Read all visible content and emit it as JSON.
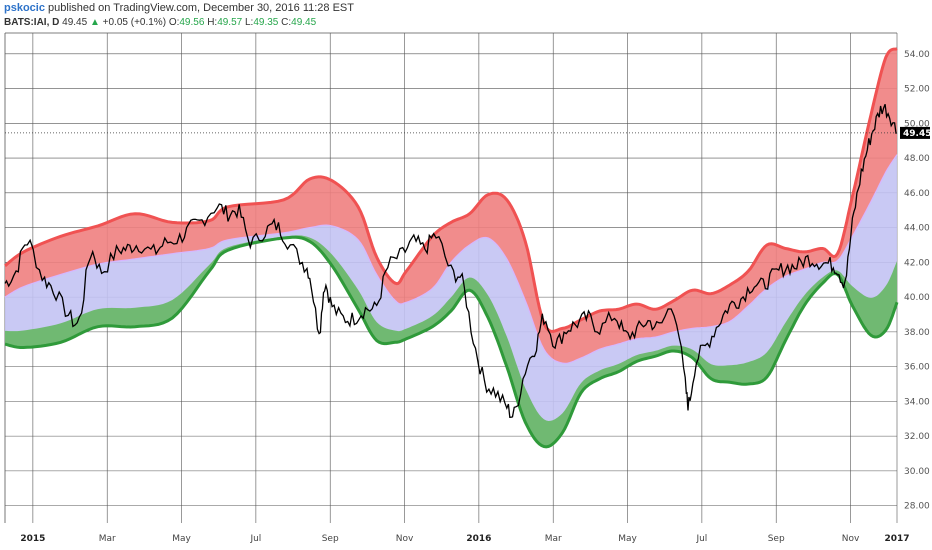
{
  "header": {
    "author": "pskocic",
    "published": " published on TradingView.com, December 30, 2016 11:28 EST",
    "symbol": "BATS:IAI, D",
    "last": "49.45",
    "arrow": "▲",
    "change": "+0.05 (+0.1%)",
    "o_label": "O:",
    "o_value": "49.56",
    "h_label": "H:",
    "h_value": "49.57",
    "l_label": "L:",
    "l_value": "49.35",
    "c_label": "C:",
    "c_value": "49.45"
  },
  "colors": {
    "upper": "#f05252",
    "upper_fill": "#f08080",
    "middle_fill": "#c3c3f3",
    "middle_line": "#d6b6ff",
    "lower": "#2f9a3a",
    "lower_fill": "#6cb86a",
    "price": "#000000",
    "grid": "#555555",
    "label_bg": "#000000"
  },
  "chart_data": {
    "type": "line",
    "title": "",
    "ylim": [
      27,
      55.2
    ],
    "yticks": [
      "28.00",
      "30.00",
      "32.00",
      "34.00",
      "36.00",
      "38.00",
      "40.00",
      "42.00",
      "44.00",
      "46.00",
      "48.00",
      "50.00",
      "52.00",
      "54.00"
    ],
    "yvalues": [
      28,
      30,
      32,
      34,
      36,
      38,
      40,
      42,
      44,
      46,
      48,
      50,
      52,
      54
    ],
    "xlim": [
      0,
      24
    ],
    "xticks": [
      {
        "t": 0.75,
        "label": "2015",
        "bold": true
      },
      {
        "t": 2.75,
        "label": "Mar",
        "bold": false
      },
      {
        "t": 4.75,
        "label": "May",
        "bold": false
      },
      {
        "t": 6.75,
        "label": "Jul",
        "bold": false
      },
      {
        "t": 8.75,
        "label": "Sep",
        "bold": false
      },
      {
        "t": 10.75,
        "label": "Nov",
        "bold": false
      },
      {
        "t": 12.75,
        "label": "2016",
        "bold": true
      },
      {
        "t": 14.75,
        "label": "Mar",
        "bold": false
      },
      {
        "t": 16.75,
        "label": "May",
        "bold": false
      },
      {
        "t": 18.75,
        "label": "Jul",
        "bold": false
      },
      {
        "t": 20.75,
        "label": "Sep",
        "bold": false
      },
      {
        "t": 22.75,
        "label": "Nov",
        "bold": false
      },
      {
        "t": 24.0,
        "label": "2017",
        "bold": true
      }
    ],
    "last_price": "49.45",
    "series": [
      {
        "key": "upper",
        "x": [
          0,
          0.5,
          1.5,
          2.5,
          3.5,
          4.5,
          5.5,
          6,
          7.5,
          8.2,
          8.8,
          9.5,
          10,
          10.5,
          10.8,
          11.5,
          12,
          12.5,
          13,
          13.5,
          14,
          14.5,
          15,
          15.5,
          16,
          16.5,
          17,
          17.5,
          18,
          18.5,
          19,
          19.5,
          20,
          20.5,
          21,
          21.5,
          22,
          22.4,
          22.8,
          23.3,
          23.7,
          24
        ],
        "y": [
          41.8,
          42.6,
          43.5,
          44.1,
          44.8,
          44.3,
          44.4,
          45.2,
          45.6,
          46.8,
          46.7,
          45.2,
          42.3,
          40.8,
          41.5,
          43.5,
          44.3,
          44.8,
          45.9,
          45.6,
          43.2,
          38.5,
          38.2,
          38.7,
          39.2,
          39.3,
          39.6,
          39.3,
          39.8,
          40.4,
          40.2,
          40.7,
          41.5,
          43,
          42.8,
          42.6,
          42.8,
          42.5,
          45.8,
          50.5,
          53.8,
          54.3
        ]
      },
      {
        "key": "middle",
        "x": [
          0,
          0.5,
          1.5,
          2.5,
          3.5,
          4.5,
          5.5,
          6,
          7.5,
          8.2,
          8.8,
          9.5,
          10,
          10.5,
          10.8,
          11.5,
          12,
          12.5,
          13,
          13.5,
          14,
          14.5,
          15,
          15.5,
          16,
          16.5,
          17,
          17.5,
          18,
          18.5,
          19,
          19.5,
          20,
          20.5,
          21,
          21.5,
          22,
          22.4,
          22.8,
          23.3,
          23.7,
          24
        ],
        "y": [
          40,
          40.6,
          41.3,
          41.9,
          42.2,
          42.5,
          42.8,
          43.3,
          43.7,
          44,
          44.1,
          43.3,
          41.3,
          39.8,
          39.7,
          40.5,
          42,
          43,
          43.4,
          42.2,
          39.8,
          37,
          36.2,
          36.5,
          37,
          37.3,
          37.6,
          37.7,
          38,
          38.2,
          38.3,
          38.6,
          39.5,
          40.5,
          41.2,
          41.6,
          42,
          42.1,
          43.5,
          45.5,
          47.2,
          48.2
        ]
      },
      {
        "key": "lower",
        "x": [
          0,
          0.5,
          1.5,
          2.5,
          3.5,
          4.5,
          5.5,
          6,
          7.5,
          8.2,
          8.8,
          9.5,
          10,
          10.5,
          10.8,
          11.5,
          12,
          12.5,
          13,
          13.5,
          14,
          14.5,
          15,
          15.5,
          16,
          16.5,
          17,
          17.5,
          18,
          18.5,
          19,
          19.5,
          20,
          20.5,
          21,
          21.5,
          22,
          22.4,
          22.8,
          23.3,
          23.7,
          24
        ],
        "y": [
          37.3,
          37.1,
          37.4,
          38.3,
          38.3,
          38.8,
          41.5,
          42.7,
          43.4,
          43.2,
          41.8,
          39.3,
          37.5,
          37.4,
          37.6,
          38.3,
          39.2,
          40.4,
          38.8,
          36,
          32.8,
          31.4,
          32.2,
          34.5,
          35.3,
          35.7,
          36.3,
          36.6,
          36.9,
          36.5,
          35.3,
          35.1,
          35,
          35.4,
          37.5,
          39.5,
          40.8,
          41.3,
          39.5,
          37.8,
          38.1,
          39.7
        ]
      },
      {
        "key": "price",
        "x": [
          0,
          0.3,
          0.6,
          1,
          1.3,
          1.7,
          2,
          2.3,
          2.6,
          3,
          3.3,
          3.6,
          4,
          4.3,
          4.7,
          5,
          5.3,
          5.7,
          6,
          6.3,
          6.6,
          7,
          7.3,
          7.6,
          8,
          8.2,
          8.45,
          8.6,
          8.8,
          9.1,
          9.4,
          9.7,
          10,
          10.3,
          10.7,
          11,
          11.3,
          11.6,
          12,
          12.3,
          12.6,
          12.9,
          13.2,
          13.5,
          13.7,
          14,
          14.3,
          14.5,
          14.8,
          15.1,
          15.4,
          15.7,
          16,
          16.4,
          16.7,
          17,
          17.3,
          17.6,
          18,
          18.3,
          18.4,
          18.6,
          18.9,
          19.2,
          19.5,
          19.8,
          20.1,
          20.4,
          20.7,
          21,
          21.3,
          21.6,
          21.9,
          22.2,
          22.4,
          22.6,
          22.8,
          23,
          23.2,
          23.4,
          23.6,
          23.8,
          24
        ],
        "y": [
          40.8,
          41.5,
          43.2,
          41.2,
          40.5,
          39,
          38.7,
          42.5,
          41.5,
          42.6,
          42.8,
          43,
          42.6,
          43.1,
          43.4,
          44,
          44.4,
          45.2,
          44.8,
          44.9,
          43.2,
          43.8,
          44.1,
          43.2,
          42,
          41.2,
          38.2,
          40.7,
          39.5,
          38.8,
          38.8,
          39.3,
          39.5,
          41.7,
          42.5,
          43.2,
          42.8,
          43.5,
          41.5,
          40.9,
          37.6,
          35.2,
          34.5,
          33.7,
          33.3,
          35.8,
          37.3,
          38.8,
          37.4,
          38.1,
          38.5,
          38.8,
          38.2,
          38.9,
          37.8,
          38.1,
          38.6,
          38.3,
          39.3,
          35,
          33.9,
          36.3,
          37.3,
          38.5,
          39.5,
          39.9,
          40.7,
          40.7,
          41.3,
          41.7,
          41.8,
          42.2,
          42,
          41.9,
          41.6,
          41,
          44.2,
          46.7,
          48.5,
          49.9,
          50.9,
          50.5,
          49.45
        ]
      }
    ]
  }
}
